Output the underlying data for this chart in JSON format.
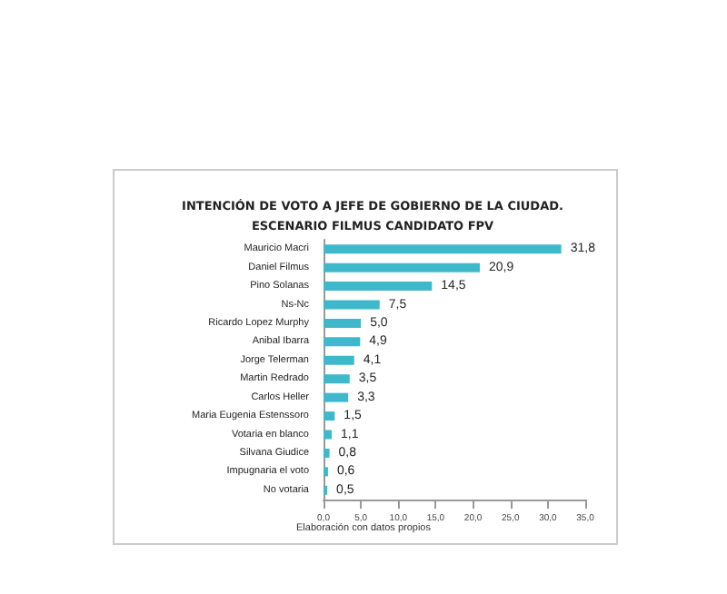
{
  "chart_data": {
    "type": "bar",
    "orientation": "horizontal",
    "title": "INTENCIÓN DE VOTO A JEFE DE GOBIERNO DE LA CIUDAD.\nESCENARIO FILMUS CANDIDATO FPV",
    "categories": [
      "Mauricio Macri",
      "Daniel Filmus",
      "Pino Solanas",
      "Ns-Nc",
      "Ricardo Lopez Murphy",
      "Anibal Ibarra",
      "Jorge Telerman",
      "Martin Redrado",
      "Carlos Heller",
      "Maria Eugenia Estenssoro",
      "Votaria en blanco",
      "Silvana Giudice",
      "Impugnaria el voto",
      "No votaria"
    ],
    "values": [
      31.8,
      20.9,
      14.5,
      7.5,
      5.0,
      4.9,
      4.1,
      3.5,
      3.3,
      1.5,
      1.1,
      0.8,
      0.6,
      0.5
    ],
    "value_labels": [
      "31,8",
      "20,9",
      "14,5",
      "7,5",
      "5,0",
      "4,9",
      "4,1",
      "3,5",
      "3,3",
      "1,5",
      "1,1",
      "0,8",
      "0,6",
      "0,5"
    ],
    "color": "#3fb8cc",
    "xlim": [
      0,
      35
    ],
    "xticks": [
      {
        "value": 0,
        "label": "0,0"
      },
      {
        "value": 5,
        "label": "5,0"
      },
      {
        "value": 10,
        "label": "10,0"
      },
      {
        "value": 15,
        "label": "15,0"
      },
      {
        "value": 20,
        "label": "20,0"
      },
      {
        "value": 25,
        "label": "25,0"
      },
      {
        "value": 30,
        "label": "30,0"
      },
      {
        "value": 35,
        "label": "35,0"
      }
    ],
    "annotations": [
      "Elaboración con datos propios"
    ],
    "grid": false
  }
}
